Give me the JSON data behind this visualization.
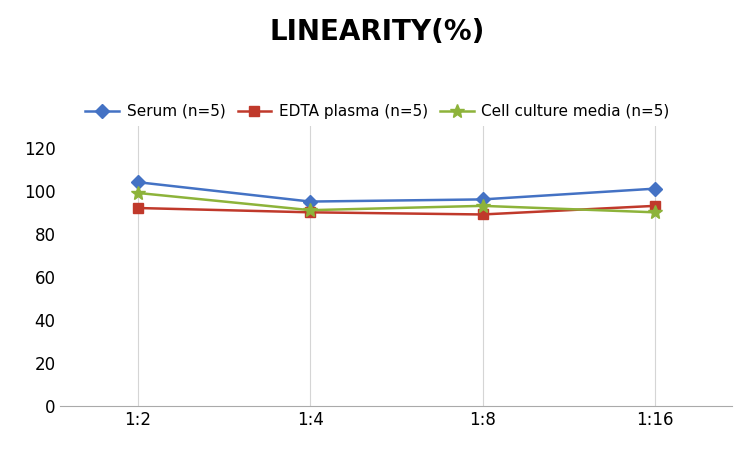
{
  "title": "LINEARITY(%)",
  "x_labels": [
    "1:2",
    "1:4",
    "1:8",
    "1:16"
  ],
  "x_positions": [
    0,
    1,
    2,
    3
  ],
  "series": [
    {
      "name": "Serum (n=5)",
      "color": "#4472C4",
      "marker": "D",
      "markersize": 7,
      "values": [
        104,
        95,
        96,
        101
      ]
    },
    {
      "name": "EDTA plasma (n=5)",
      "color": "#C0392B",
      "marker": "s",
      "markersize": 7,
      "values": [
        92,
        90,
        89,
        93
      ]
    },
    {
      "name": "Cell culture media (n=5)",
      "color": "#8DB33A",
      "marker": "*",
      "markersize": 10,
      "values": [
        99,
        91,
        93,
        90
      ]
    }
  ],
  "ylim": [
    0,
    130
  ],
  "yticks": [
    0,
    20,
    40,
    60,
    80,
    100,
    120
  ],
  "background_color": "#ffffff",
  "title_fontsize": 20,
  "legend_fontsize": 11,
  "tick_fontsize": 12,
  "grid_color": "#d5d5d5"
}
